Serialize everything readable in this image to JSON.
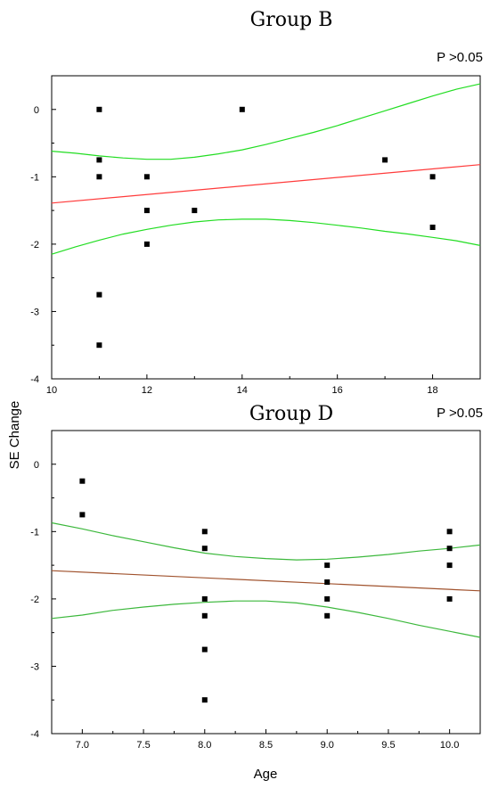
{
  "figure": {
    "shared_xlabel": "Age",
    "shared_ylabel": "SE Change"
  },
  "chart_data": [
    {
      "type": "scatter",
      "title": "Group B",
      "annotation": "P >0.05",
      "xlabel": "",
      "ylabel": "",
      "xlim": [
        10,
        19
      ],
      "ylim": [
        -4,
        0.5
      ],
      "x_ticks": [
        10,
        12,
        14,
        16,
        18
      ],
      "x_tick_labels": [
        "10",
        "12",
        "14",
        "16",
        "18"
      ],
      "y_ticks": [
        0,
        -1,
        -2,
        -3,
        -4
      ],
      "y_tick_labels": [
        "0",
        "-1",
        "-2",
        "-3",
        "-4"
      ],
      "grid": false,
      "points": [
        {
          "x": 11,
          "y": 0
        },
        {
          "x": 11,
          "y": -0.75
        },
        {
          "x": 11,
          "y": -1
        },
        {
          "x": 11,
          "y": -2.75
        },
        {
          "x": 11,
          "y": -3.5
        },
        {
          "x": 12,
          "y": -1
        },
        {
          "x": 12,
          "y": -1.5
        },
        {
          "x": 12,
          "y": -2
        },
        {
          "x": 13,
          "y": -1.5
        },
        {
          "x": 14,
          "y": 0
        },
        {
          "x": 17,
          "y": -0.75
        },
        {
          "x": 18,
          "y": -1
        },
        {
          "x": 18,
          "y": -1.75
        }
      ],
      "fit_line": {
        "color": "#ff3b3b",
        "x": [
          10,
          19
        ],
        "y": [
          -1.39,
          -0.82
        ]
      },
      "confidence_band": {
        "color": "#22dd22",
        "x": [
          10,
          10.5,
          11,
          11.5,
          12,
          12.5,
          13,
          13.5,
          14,
          14.5,
          15,
          15.5,
          16,
          16.5,
          17,
          17.5,
          18,
          18.5,
          19
        ],
        "upper": [
          -0.62,
          -0.65,
          -0.69,
          -0.72,
          -0.74,
          -0.74,
          -0.71,
          -0.66,
          -0.6,
          -0.52,
          -0.43,
          -0.34,
          -0.24,
          -0.13,
          -0.02,
          0.09,
          0.2,
          0.3,
          0.38
        ],
        "lower": [
          -2.15,
          -2.04,
          -1.94,
          -1.85,
          -1.78,
          -1.72,
          -1.67,
          -1.64,
          -1.63,
          -1.63,
          -1.65,
          -1.68,
          -1.72,
          -1.76,
          -1.81,
          -1.85,
          -1.9,
          -1.95,
          -2.02
        ]
      }
    },
    {
      "type": "scatter",
      "title": "Group D",
      "annotation": "P >0.05",
      "xlabel": "Age",
      "ylabel": "SE Change",
      "xlim": [
        6.75,
        10.25
      ],
      "ylim": [
        -4,
        0.5
      ],
      "x_ticks": [
        7.0,
        7.5,
        8.0,
        8.5,
        9.0,
        9.5,
        10.0
      ],
      "x_tick_labels": [
        "7.0",
        "7.5",
        "8.0",
        "8.5",
        "9.0",
        "9.5",
        "10.0"
      ],
      "y_ticks": [
        0,
        -1,
        -2,
        -3,
        -4
      ],
      "y_tick_labels": [
        "0",
        "-1",
        "-2",
        "-3",
        "-4"
      ],
      "grid": false,
      "points": [
        {
          "x": 7,
          "y": -0.25
        },
        {
          "x": 7,
          "y": -0.75
        },
        {
          "x": 8,
          "y": -1
        },
        {
          "x": 8,
          "y": -1.25
        },
        {
          "x": 8,
          "y": -2
        },
        {
          "x": 8,
          "y": -2.25
        },
        {
          "x": 8,
          "y": -2.75
        },
        {
          "x": 8,
          "y": -3.5
        },
        {
          "x": 9,
          "y": -1.5
        },
        {
          "x": 9,
          "y": -1.75
        },
        {
          "x": 9,
          "y": -2
        },
        {
          "x": 9,
          "y": -2.25
        },
        {
          "x": 10,
          "y": -1
        },
        {
          "x": 10,
          "y": -1.25
        },
        {
          "x": 10,
          "y": -1.5
        },
        {
          "x": 10,
          "y": -2
        }
      ],
      "fit_line": {
        "color": "#a0522d",
        "x": [
          6.75,
          10.25
        ],
        "y": [
          -1.58,
          -1.88
        ]
      },
      "confidence_band": {
        "color": "#3cb83c",
        "x": [
          6.75,
          7.0,
          7.25,
          7.5,
          7.75,
          8.0,
          8.25,
          8.5,
          8.75,
          9.0,
          9.25,
          9.5,
          9.75,
          10.0,
          10.25
        ],
        "upper": [
          -0.87,
          -0.96,
          -1.06,
          -1.15,
          -1.24,
          -1.32,
          -1.37,
          -1.4,
          -1.42,
          -1.41,
          -1.38,
          -1.34,
          -1.29,
          -1.25,
          -1.2
        ],
        "lower": [
          -2.29,
          -2.24,
          -2.17,
          -2.12,
          -2.08,
          -2.05,
          -2.03,
          -2.03,
          -2.06,
          -2.12,
          -2.2,
          -2.29,
          -2.39,
          -2.48,
          -2.57
        ]
      }
    }
  ]
}
